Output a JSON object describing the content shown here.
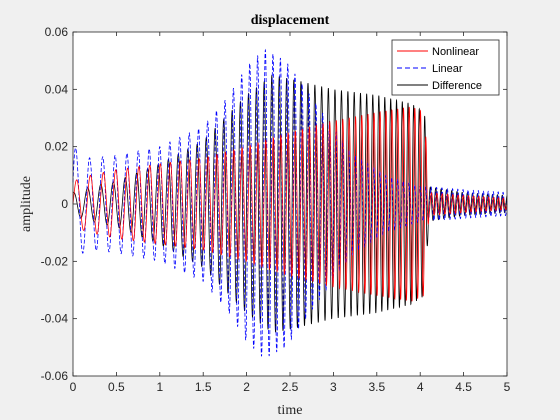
{
  "chart_data": {
    "type": "line",
    "title": "displacement",
    "xlabel": "time",
    "ylabel": "amplitude",
    "xlim": [
      0,
      5
    ],
    "ylim": [
      -0.06,
      0.06
    ],
    "x_ticks": [
      "0",
      "0.5",
      "1",
      "1.5",
      "2",
      "2.5",
      "3",
      "3.5",
      "4",
      "4.5",
      "5"
    ],
    "y_ticks": [
      "-0.06",
      "-0.04",
      "-0.02",
      "0",
      "0.02",
      "0.04",
      "0.06"
    ],
    "grid": false,
    "legend_position": "top-right",
    "series": [
      {
        "name": "Nonlinear",
        "color": "#ff0000",
        "style": "solid",
        "envelope": {
          "t": [
            0,
            0.2,
            0.5,
            1.0,
            1.5,
            2.0,
            2.5,
            3.0,
            3.5,
            3.9,
            4.05,
            4.1,
            4.5,
            5.0
          ],
          "amp": [
            0.008,
            0.01,
            0.012,
            0.014,
            0.016,
            0.02,
            0.025,
            0.029,
            0.032,
            0.034,
            0.032,
            0.004,
            0.003,
            0.002
          ]
        }
      },
      {
        "name": "Linear",
        "color": "#0000ff",
        "style": "dashed",
        "envelope": {
          "t": [
            0,
            0.05,
            0.2,
            0.5,
            1.0,
            1.5,
            1.8,
            2.0,
            2.2,
            2.45,
            2.8,
            3.2,
            3.6,
            4.0,
            4.1,
            4.5,
            5.0
          ],
          "amp": [
            0.022,
            0.018,
            0.016,
            0.017,
            0.02,
            0.027,
            0.038,
            0.048,
            0.054,
            0.05,
            0.035,
            0.018,
            0.01,
            0.006,
            0.006,
            0.005,
            0.004
          ]
        }
      },
      {
        "name": "Difference",
        "color": "#000000",
        "style": "solid",
        "envelope": {
          "t": [
            0,
            0.2,
            0.5,
            1.0,
            1.5,
            2.0,
            2.3,
            2.6,
            3.0,
            3.5,
            3.9,
            4.05,
            4.1,
            4.5,
            5.0
          ],
          "amp": [
            0.004,
            0.006,
            0.008,
            0.014,
            0.022,
            0.038,
            0.045,
            0.043,
            0.04,
            0.038,
            0.035,
            0.032,
            0.006,
            0.004,
            0.003
          ]
        }
      }
    ]
  }
}
